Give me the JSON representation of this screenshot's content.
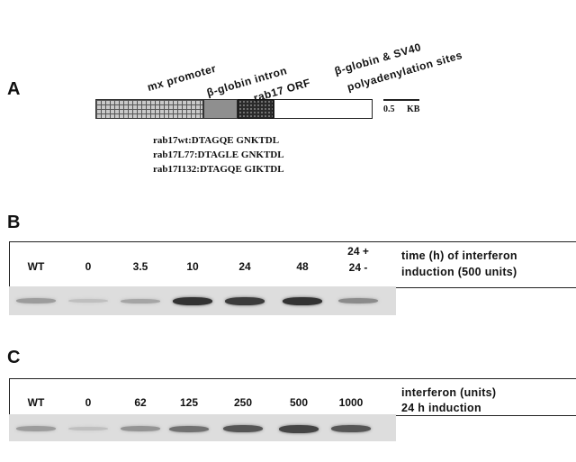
{
  "panel_a": {
    "label": "A",
    "segment_labels": {
      "mx_promoter": "mx promoter",
      "globin_intron": "β-globin intron",
      "rab17_orf": "rab17 ORF",
      "polya_line1": "β-globin & SV40",
      "polya_line2": "polyadenylation sites"
    },
    "scale_bar": {
      "value": "0.5",
      "unit": "KB"
    },
    "sequences": [
      "rab17wt:DTAGQE GNKTDL",
      "rab17L77:DTAGLE GNKTDL",
      "rab17I132:DTAGQE GIKTDL"
    ]
  },
  "panel_b": {
    "label": "B",
    "lanes": [
      "WT",
      "0",
      "3.5",
      "10",
      "24",
      "48"
    ],
    "lane_last_top": "24 +",
    "lane_last_bottom": "24 -",
    "condition_line1": "time (h) of interferon",
    "condition_line2": "induction (500 units)",
    "band_intensity": [
      0.25,
      0.05,
      0.2,
      0.85,
      0.8,
      0.85,
      0.35
    ]
  },
  "panel_c": {
    "label": "C",
    "lanes": [
      "WT",
      "0",
      "62",
      "125",
      "250",
      "500",
      "1000"
    ],
    "condition_line1": "interferon     (units)",
    "condition_line2": "24  h  induction",
    "band_intensity": [
      0.25,
      0.05,
      0.3,
      0.5,
      0.65,
      0.75,
      0.65
    ]
  }
}
